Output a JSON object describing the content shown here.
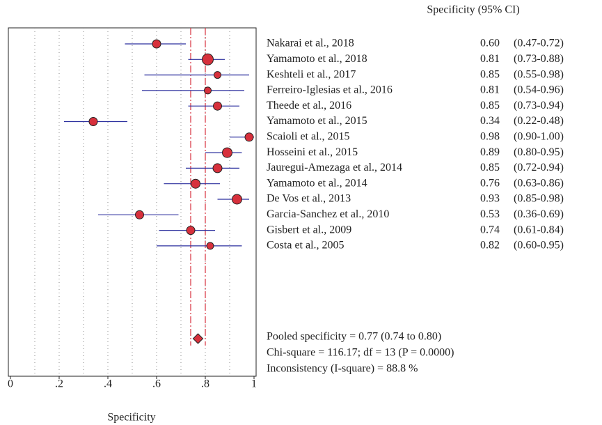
{
  "chart_data": {
    "type": "forest",
    "header": "Specificity (95% CI)",
    "x_label": "Specificity",
    "studies": [
      "Nakarai et al., 2018",
      "Yamamoto et al., 2018",
      "Keshteli et al., 2017",
      "Ferreiro-Iglesias et al., 2016",
      "Theede et al., 2016",
      "Yamamoto et al., 2015",
      "Scaioli et al., 2015",
      "Hosseini et al., 2015",
      "Jauregui-Amezaga et al., 2014",
      "Yamamoto et al., 2014",
      "De Vos et al., 2013",
      "Garcia-Sanchez et al., 2010",
      "Gisbert et al., 2009",
      "Costa et al., 2005"
    ],
    "values": [
      0.6,
      0.81,
      0.85,
      0.81,
      0.85,
      0.34,
      0.98,
      0.89,
      0.85,
      0.76,
      0.93,
      0.53,
      0.74,
      0.82
    ],
    "value_labels": [
      "0.60",
      "0.81",
      "0.85",
      "0.81",
      "0.85",
      "0.34",
      "0.98",
      "0.89",
      "0.85",
      "0.76",
      "0.93",
      "0.53",
      "0.74",
      "0.82"
    ],
    "ci_low": [
      0.47,
      0.73,
      0.55,
      0.54,
      0.73,
      0.22,
      0.9,
      0.8,
      0.72,
      0.63,
      0.85,
      0.36,
      0.61,
      0.6
    ],
    "ci_high": [
      0.72,
      0.88,
      0.98,
      0.96,
      0.94,
      0.48,
      1,
      0.95,
      0.94,
      0.86,
      0.98,
      0.69,
      0.84,
      0.95
    ],
    "ci_labels": [
      "(0.47-0.72)",
      "(0.73-0.88)",
      "(0.55-0.98)",
      "(0.54-0.96)",
      "(0.73-0.94)",
      "(0.22-0.48)",
      "(0.90-1.00)",
      "(0.80-0.95)",
      "(0.72-0.94)",
      "(0.63-0.86)",
      "(0.85-0.98)",
      "(0.36-0.69)",
      "(0.61-0.84)",
      "(0.60-0.95)"
    ],
    "weights": [
      6,
      8,
      5,
      5,
      6,
      6,
      6,
      7,
      6.5,
      6.5,
      7,
      6,
      6,
      5
    ],
    "pooled": {
      "value": 0.77,
      "ci_low": 0.74,
      "ci_high": 0.8
    },
    "annotations": [
      "Pooled specificity = 0.77 (0.74 to 0.80)",
      "Chi-square = 116.17; df = 13 (P = 0.0000)",
      "Inconsistency (I-square) = 88.8 %"
    ],
    "marker_color": "#d7303c",
    "ci_color": "#2b2f9e",
    "pooled_color": "#d7303c",
    "xlim": [
      0,
      1
    ],
    "xticks": [
      0,
      {
        "value": 0.2,
        "label": ".2"
      },
      {
        "value": 0.4,
        "label": ".4"
      },
      {
        "value": 0.6,
        "label": ".6"
      },
      {
        "value": 0.8,
        "label": ".8"
      },
      1
    ],
    "xgrid": [
      0.1,
      0.2,
      0.3,
      0.4,
      0.5,
      0.6,
      0.7,
      0.8,
      0.9
    ]
  }
}
